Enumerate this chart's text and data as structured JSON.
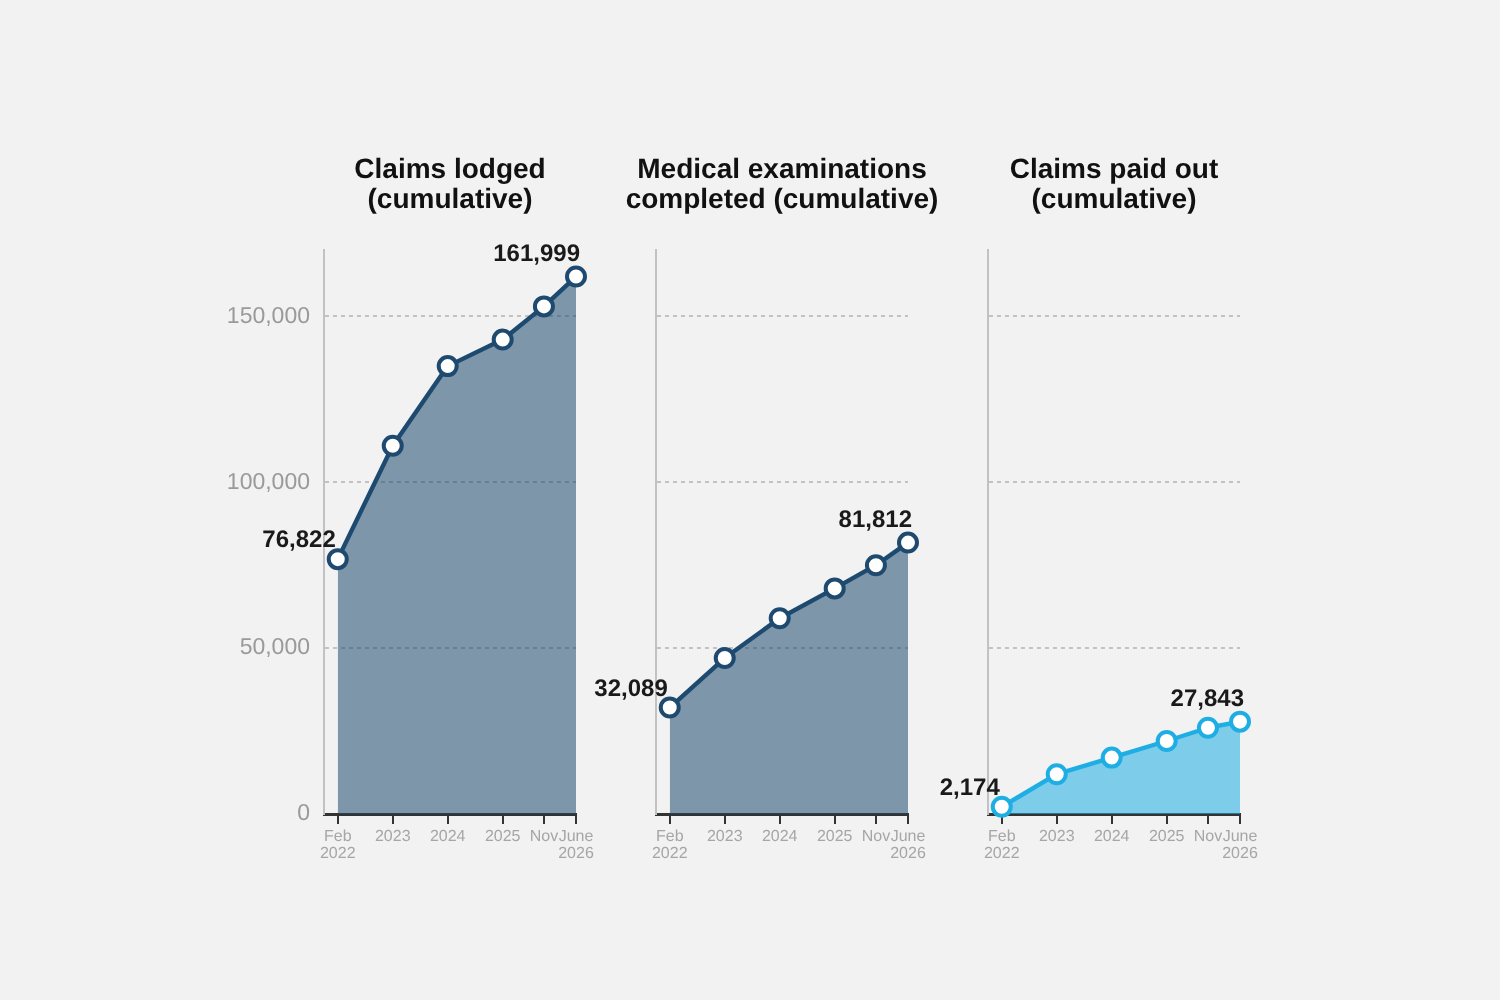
{
  "chart_data": [
    {
      "type": "area",
      "title": "Claims lodged (cumulative)",
      "x": [
        "2022-02",
        "2023-02",
        "2024-02",
        "2025-02",
        "2025-11",
        "2026-06"
      ],
      "values": [
        76822,
        111000,
        135000,
        143000,
        153000,
        161999
      ],
      "value_labels": [
        "76,822",
        null,
        null,
        null,
        null,
        "161,999"
      ],
      "color": "#1d4a6e",
      "xlim": [
        "2021-11",
        "2026-06"
      ],
      "xticks": [
        {
          "value": "2022-02",
          "label": "Feb 2022"
        },
        {
          "value": "2023-02",
          "label": "2023"
        },
        {
          "value": "2024-02",
          "label": "2024"
        },
        {
          "value": "2025-02",
          "label": "2025"
        },
        {
          "value": "2025-11",
          "label": "Nov"
        },
        {
          "value": "2026-06",
          "label": "June 2026"
        }
      ],
      "ylim": [
        0,
        170000
      ],
      "yticks": [
        0,
        {
          "value": 50000,
          "label": "50,000"
        },
        {
          "value": 100000,
          "label": "100,000"
        },
        {
          "value": 150000,
          "label": "150,000"
        }
      ],
      "grid": "y",
      "marker": "circle",
      "line_style": "solid"
    },
    {
      "type": "area",
      "title": "Medical examinations completed (cumulative)",
      "x": [
        "2022-02",
        "2023-02",
        "2024-02",
        "2025-02",
        "2025-11",
        "2026-06"
      ],
      "values": [
        32089,
        47000,
        59000,
        68000,
        75000,
        81812
      ],
      "value_labels": [
        "32,089",
        null,
        null,
        null,
        null,
        "81,812"
      ],
      "color": "#1d4a6e",
      "xlim": [
        "2021-11",
        "2026-06"
      ],
      "xticks": [
        {
          "value": "2022-02",
          "label": "Feb 2022"
        },
        {
          "value": "2023-02",
          "label": "2023"
        },
        {
          "value": "2024-02",
          "label": "2024"
        },
        {
          "value": "2025-02",
          "label": "2025"
        },
        {
          "value": "2025-11",
          "label": "Nov"
        },
        {
          "value": "2026-06",
          "label": "June 2026"
        }
      ],
      "ylim": [
        0,
        170000
      ],
      "yticks": [
        0,
        50000,
        100000,
        150000
      ],
      "tick_labels": "x",
      "grid": "y",
      "marker": "circle",
      "line_style": "solid"
    },
    {
      "type": "area",
      "title": "Claims paid out (cumulative)",
      "x": [
        "2022-02",
        "2023-02",
        "2024-02",
        "2025-02",
        "2025-11",
        "2026-06"
      ],
      "values": [
        2174,
        12000,
        17000,
        22000,
        26000,
        27843
      ],
      "value_labels": [
        "2,174",
        null,
        null,
        null,
        null,
        "27,843"
      ],
      "color": "#1eaee3",
      "xlim": [
        "2021-11",
        "2026-06"
      ],
      "xticks": [
        {
          "value": "2022-02",
          "label": "Feb 2022"
        },
        {
          "value": "2023-02",
          "label": "2023"
        },
        {
          "value": "2024-02",
          "label": "2024"
        },
        {
          "value": "2025-02",
          "label": "2025"
        },
        {
          "value": "2025-11",
          "label": "Nov"
        },
        {
          "value": "2026-06",
          "label": "June 2026"
        }
      ],
      "ylim": [
        0,
        170000
      ],
      "yticks": [
        0,
        50000,
        100000,
        150000
      ],
      "tick_labels": "x",
      "grid": "y",
      "marker": "circle",
      "line_style": "solid"
    }
  ]
}
